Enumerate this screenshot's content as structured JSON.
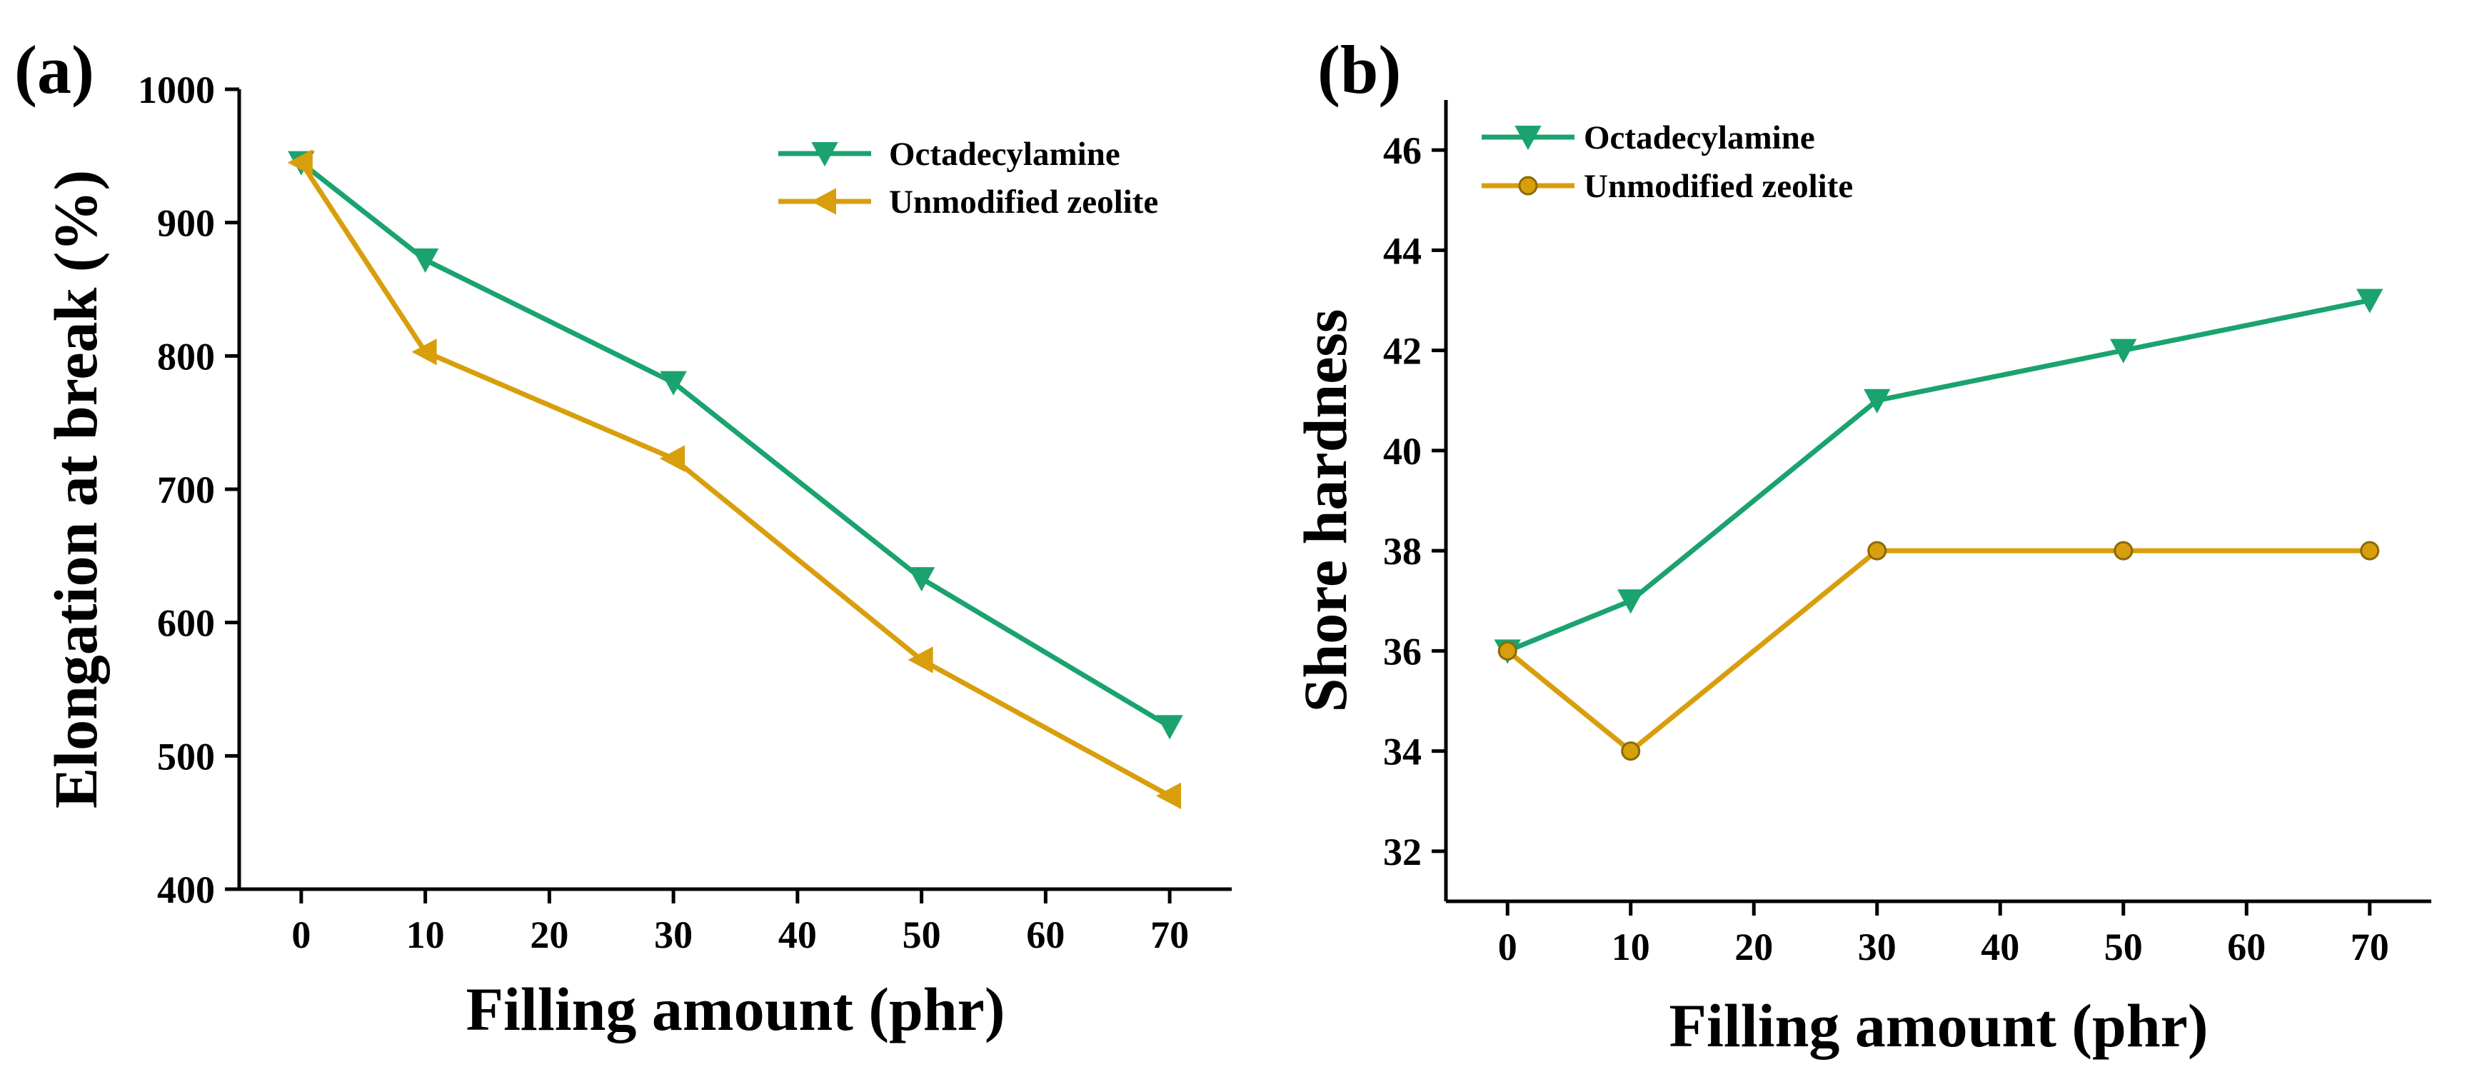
{
  "chart_data": [
    {
      "type": "line",
      "panel": "(a)",
      "xlabel": "Filling amount (phr)",
      "ylabel": "Elongation at break (%)",
      "xlim": [
        -5,
        75
      ],
      "ylim": [
        400,
        1000
      ],
      "xticks": [
        0,
        10,
        20,
        30,
        40,
        50,
        60,
        70
      ],
      "yticks": [
        400,
        500,
        600,
        700,
        800,
        900,
        1000
      ],
      "legend_position": "top-right",
      "series": [
        {
          "name": "Octadecylamine",
          "color": "#1aa36f",
          "marker": "triangle-down",
          "x": [
            0,
            10,
            30,
            50,
            70
          ],
          "y": [
            945,
            872,
            780,
            633,
            522
          ]
        },
        {
          "name": "Unmodified zeolite",
          "color": "#d89e0c",
          "marker": "triangle-left",
          "x": [
            0,
            10,
            30,
            50,
            70
          ],
          "y": [
            945,
            803,
            723,
            572,
            470
          ]
        }
      ]
    },
    {
      "type": "line",
      "panel": "(b)",
      "xlabel": "Filling amount (phr)",
      "ylabel": "Shore hardness",
      "xlim": [
        -5,
        75
      ],
      "ylim": [
        31,
        47
      ],
      "xticks": [
        0,
        10,
        20,
        30,
        40,
        50,
        60,
        70
      ],
      "yticks": [
        32,
        34,
        36,
        38,
        40,
        42,
        44,
        46
      ],
      "legend_position": "top-left",
      "series": [
        {
          "name": "Octadecylamine",
          "color": "#1aa36f",
          "marker": "triangle-down",
          "x": [
            0,
            10,
            30,
            50,
            70
          ],
          "y": [
            36,
            37,
            41,
            42,
            43
          ]
        },
        {
          "name": "Unmodified zeolite",
          "color": "#d89e0c",
          "marker": "circle",
          "x": [
            0,
            10,
            30,
            50,
            70
          ],
          "y": [
            36,
            34,
            38,
            38,
            38
          ]
        }
      ]
    }
  ]
}
